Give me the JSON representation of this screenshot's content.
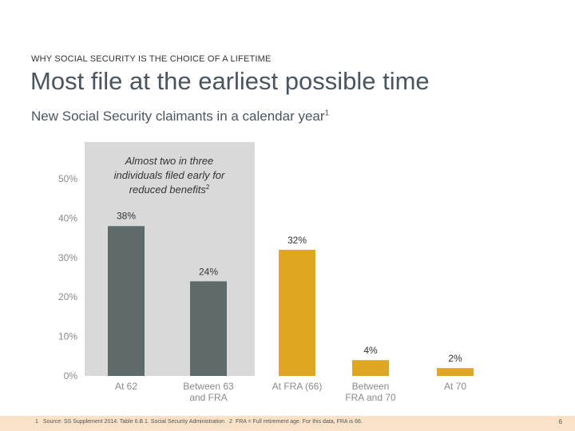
{
  "header": {
    "eyebrow": "WHY SOCIAL SECURITY IS THE CHOICE OF A LIFETIME",
    "title": "Most file at the earliest possible time",
    "subtitle": "New Social Security claimants in a calendar year",
    "subtitle_note": "1"
  },
  "chart_data": {
    "type": "bar",
    "categories": [
      "At 62",
      "Between 63 and FRA",
      "At FRA (66)",
      "Between FRA and 70",
      "At 70"
    ],
    "category_lines": [
      [
        "At 62"
      ],
      [
        "Between 63",
        "and FRA"
      ],
      [
        "At FRA (66)"
      ],
      [
        "Between",
        "FRA and 70"
      ],
      [
        "At 70"
      ]
    ],
    "values": [
      38,
      24,
      32,
      4,
      2
    ],
    "data_labels": [
      "38%",
      "24%",
      "32%",
      "4%",
      "2%"
    ],
    "bar_colors": [
      "#5f6b6b",
      "#5f6b6b",
      "#dfa621",
      "#dfa621",
      "#dfa621"
    ],
    "yticks": [
      0,
      10,
      20,
      30,
      40,
      50
    ],
    "ytick_labels": [
      "0%",
      "10%",
      "20%",
      "30%",
      "40%",
      "50%"
    ],
    "ylim": [
      0,
      50
    ],
    "highlight_color": "#d9d9d9",
    "annotation": {
      "lines": [
        "Almost two in three",
        "individuals filed early for",
        "reduced benefits"
      ],
      "note": "2"
    }
  },
  "footer": {
    "note1_mark": "1",
    "note1": "Source: SS Supplement 2014. Table 6.B.1. Social Security Administration",
    "note2_mark": "2",
    "note2": "FRA = Full retirement age. For this data, FRA is 66.",
    "page": "6"
  }
}
